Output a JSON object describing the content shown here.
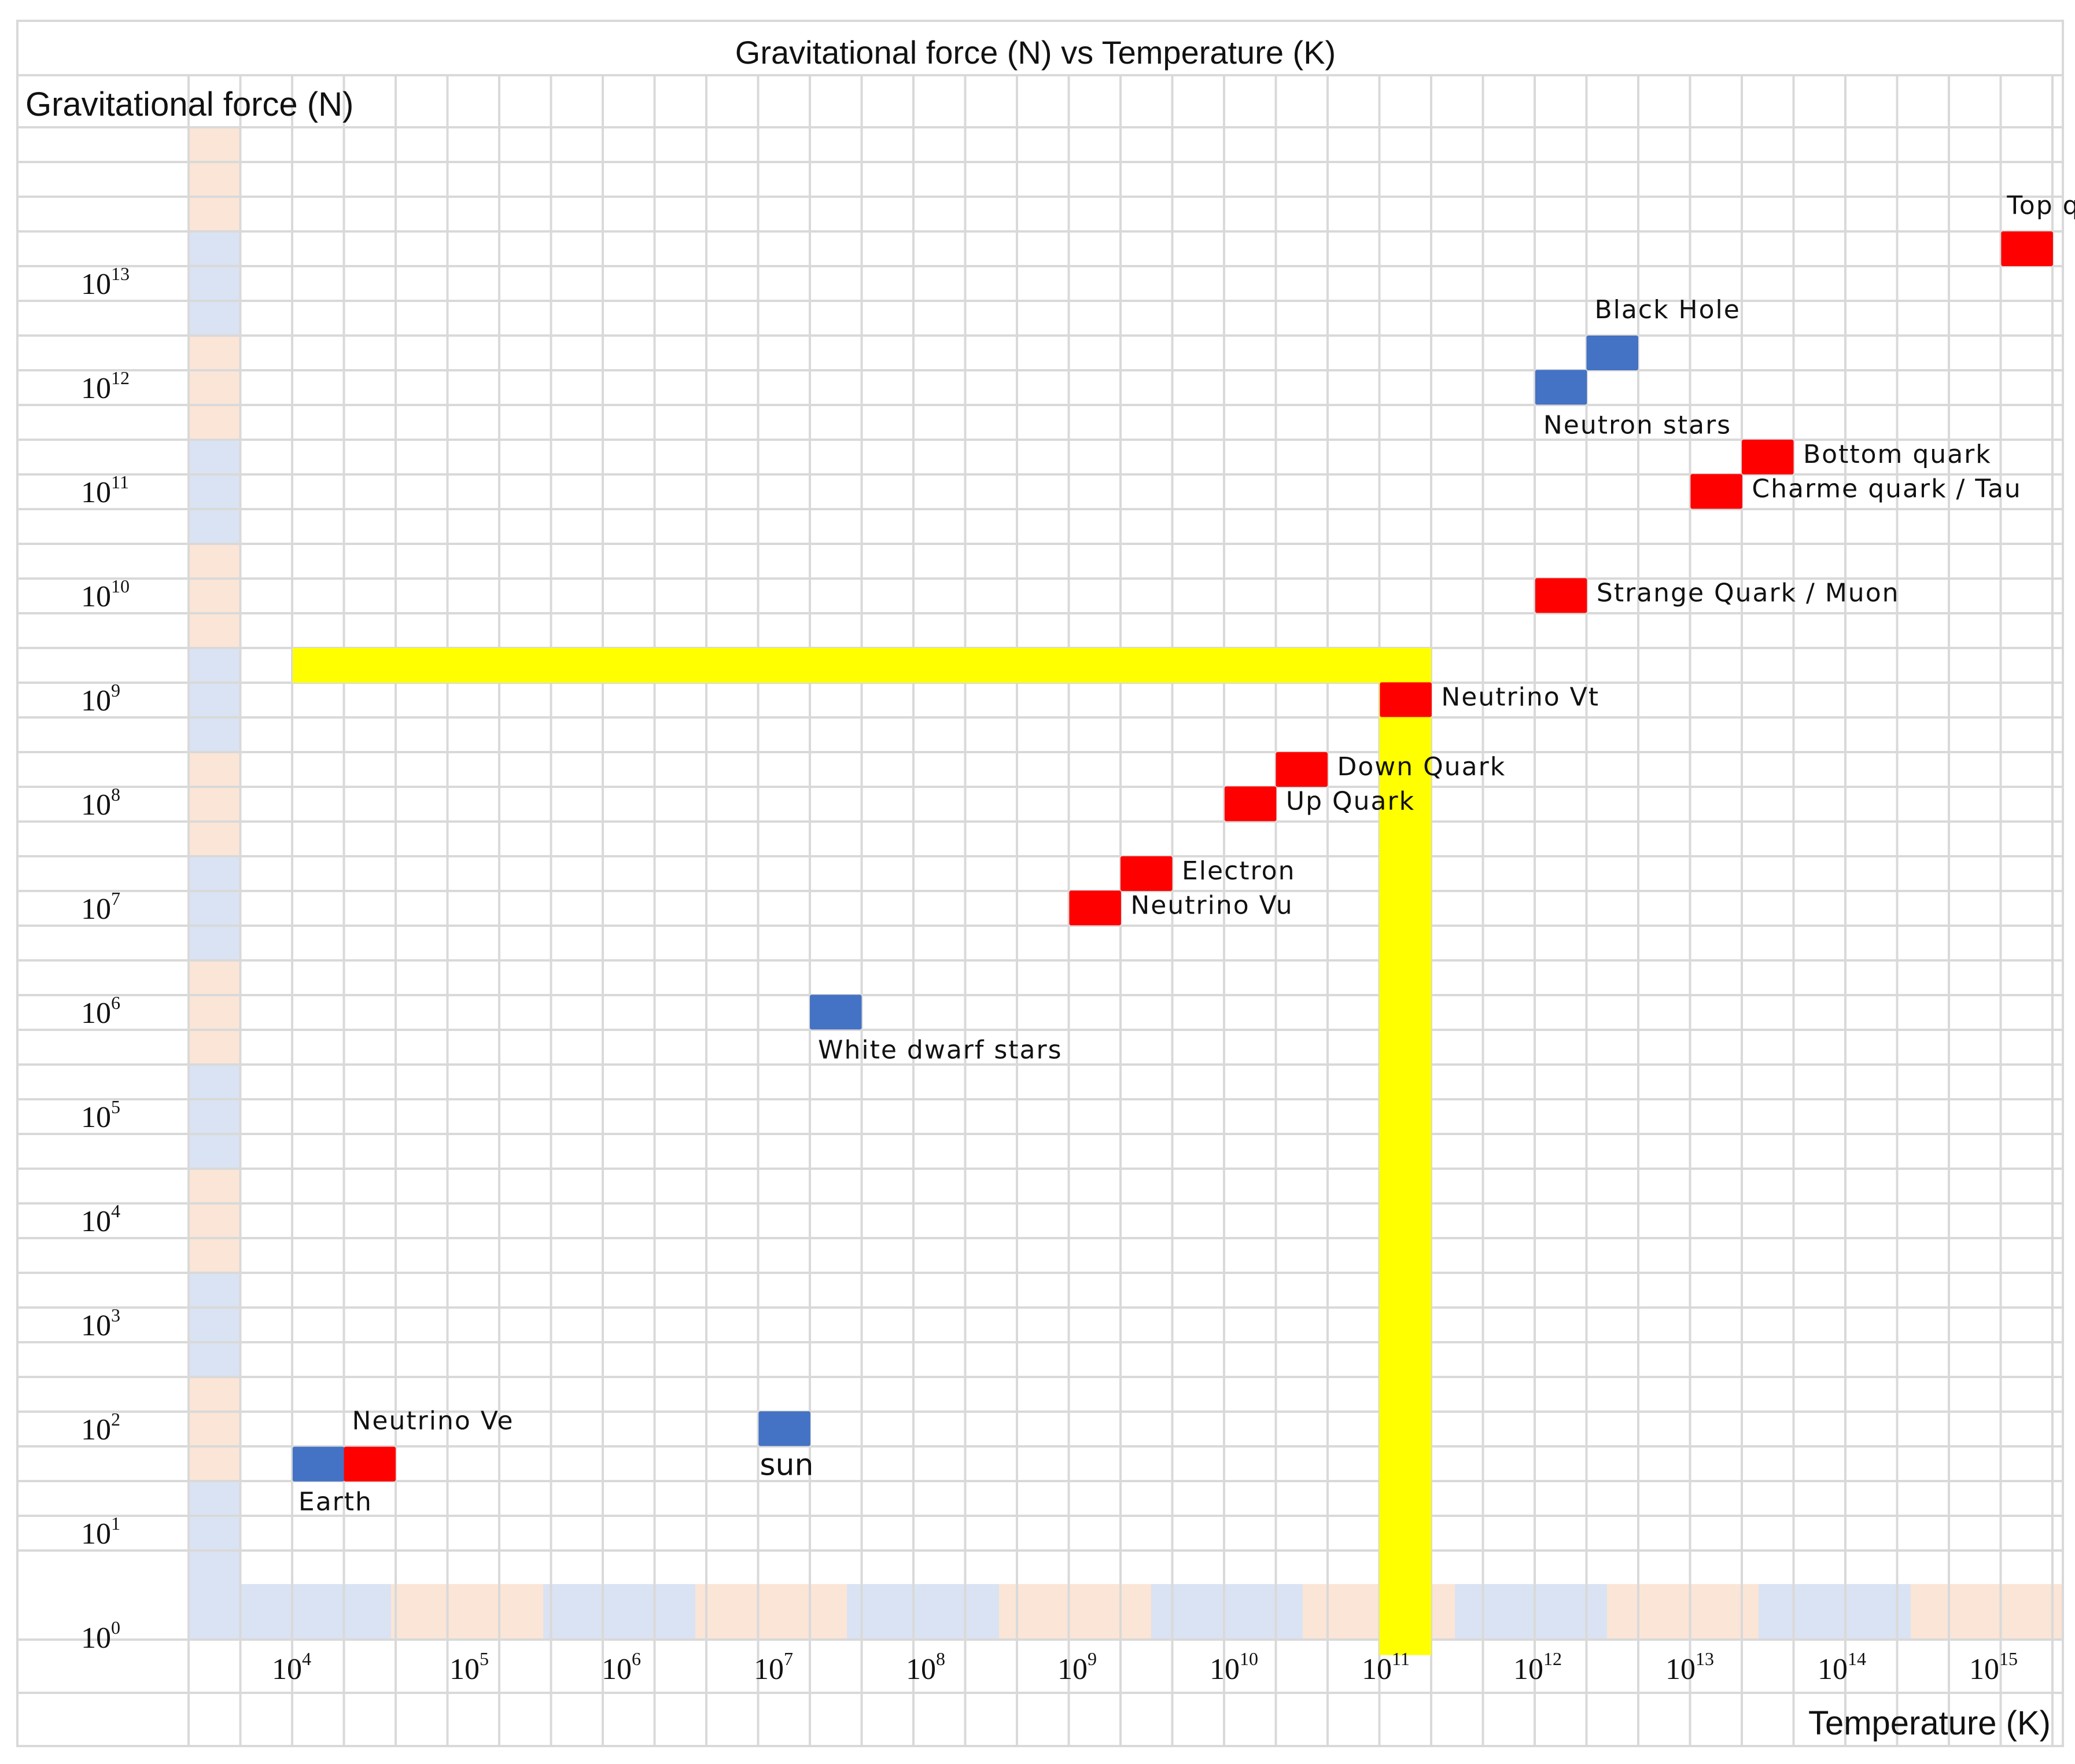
{
  "chart_data": {
    "type": "scatter",
    "title": "Gravitational force (N) vs Temperature (K)",
    "ylabel": "Gravitational force (N)",
    "xlabel": "Temperature (K)",
    "x_scale": "log",
    "y_scale": "log",
    "x_ticks": [
      {
        "base": "10",
        "exp": "4",
        "value": 10000
      },
      {
        "base": "10",
        "exp": "5",
        "value": 100000
      },
      {
        "base": "10",
        "exp": "6",
        "value": 1000000
      },
      {
        "base": "10",
        "exp": "7",
        "value": 10000000
      },
      {
        "base": "10",
        "exp": "8",
        "value": 100000000
      },
      {
        "base": "10",
        "exp": "9",
        "value": 1000000000
      },
      {
        "base": "10",
        "exp": "10",
        "value": 10000000000
      },
      {
        "base": "10",
        "exp": "11",
        "value": 100000000000
      },
      {
        "base": "10",
        "exp": "12",
        "value": 1000000000000
      },
      {
        "base": "10",
        "exp": "13",
        "value": 10000000000000
      },
      {
        "base": "10",
        "exp": "14",
        "value": 100000000000000
      },
      {
        "base": "10",
        "exp": "15",
        "value": 1000000000000000
      }
    ],
    "y_ticks": [
      {
        "base": "10",
        "exp": "13",
        "value": 10000000000000
      },
      {
        "base": "10",
        "exp": "12",
        "value": 1000000000000
      },
      {
        "base": "10",
        "exp": "11",
        "value": 100000000000
      },
      {
        "base": "10",
        "exp": "10",
        "value": 10000000000
      },
      {
        "base": "10",
        "exp": "9",
        "value": 1000000000
      },
      {
        "base": "10",
        "exp": "8",
        "value": 100000000
      },
      {
        "base": "10",
        "exp": "7",
        "value": 10000000
      },
      {
        "base": "10",
        "exp": "6",
        "value": 1000000
      },
      {
        "base": "10",
        "exp": "5",
        "value": 100000
      },
      {
        "base": "10",
        "exp": "4",
        "value": 10000
      },
      {
        "base": "10",
        "exp": "3",
        "value": 1000
      },
      {
        "base": "10",
        "exp": "2",
        "value": 100
      },
      {
        "base": "10",
        "exp": "1",
        "value": 10
      },
      {
        "base": "10",
        "exp": "0",
        "value": 1
      }
    ],
    "grid": true,
    "points": [
      {
        "label": "Earth",
        "x_exp": 3.67,
        "y_exp": 1.33,
        "color": "#4472c4"
      },
      {
        "label": "Neutrino Ve",
        "x_exp": 4.0,
        "y_exp": 1.33,
        "color": "#ff0000"
      },
      {
        "label": "sun",
        "x_exp": 6.67,
        "y_exp": 1.67,
        "color": "#4472c4"
      },
      {
        "label": "White dwarf stars",
        "x_exp": 7.0,
        "y_exp": 5.67,
        "color": "#4472c4"
      },
      {
        "label": "Neutrino Vu",
        "x_exp": 8.67,
        "y_exp": 6.67,
        "color": "#ff0000"
      },
      {
        "label": "Electron",
        "x_exp": 9.0,
        "y_exp": 7.0,
        "color": "#ff0000"
      },
      {
        "label": "Up Quark",
        "x_exp": 9.67,
        "y_exp": 7.67,
        "color": "#ff0000"
      },
      {
        "label": "Down Quark",
        "x_exp": 10.0,
        "y_exp": 8.0,
        "color": "#ff0000"
      },
      {
        "label": "Neutrino Vt",
        "x_exp": 10.67,
        "y_exp": 8.67,
        "color": "#ff0000"
      },
      {
        "label": "Strange Quark / Muon",
        "x_exp": 11.67,
        "y_exp": 9.67,
        "color": "#ff0000"
      },
      {
        "label": "Charme quark / Tau",
        "x_exp": 12.67,
        "y_exp": 10.67,
        "color": "#ff0000"
      },
      {
        "label": "Bottom quark",
        "x_exp": 13.0,
        "y_exp": 11.0,
        "color": "#ff0000"
      },
      {
        "label": "Neutron stars",
        "x_exp": 11.67,
        "y_exp": 11.67,
        "color": "#4472c4"
      },
      {
        "label": "Black Hole",
        "x_exp": 12.0,
        "y_exp": 12.0,
        "color": "#4472c4"
      },
      {
        "label": "Top quark",
        "x_exp": 14.67,
        "y_exp": 13.0,
        "color": "#ff0000"
      }
    ],
    "highlight_lines": [
      {
        "orientation": "horizontal",
        "value_exp": 9.0,
        "from_x_exp": 3.67,
        "to_x_exp": 11.0,
        "color": "#ffff00"
      },
      {
        "orientation": "vertical",
        "value_exp": 11.0,
        "from_y_exp": -0.67,
        "to_y_exp": 9.0,
        "color": "#ffff00"
      }
    ],
    "colors": {
      "blue_marker": "#4472c4",
      "red_marker": "#ff0000",
      "highlight": "#ffff00",
      "band_blue": "#dae3f3",
      "band_peach": "#fbe5d6",
      "grid": "#d9d9d9"
    }
  }
}
